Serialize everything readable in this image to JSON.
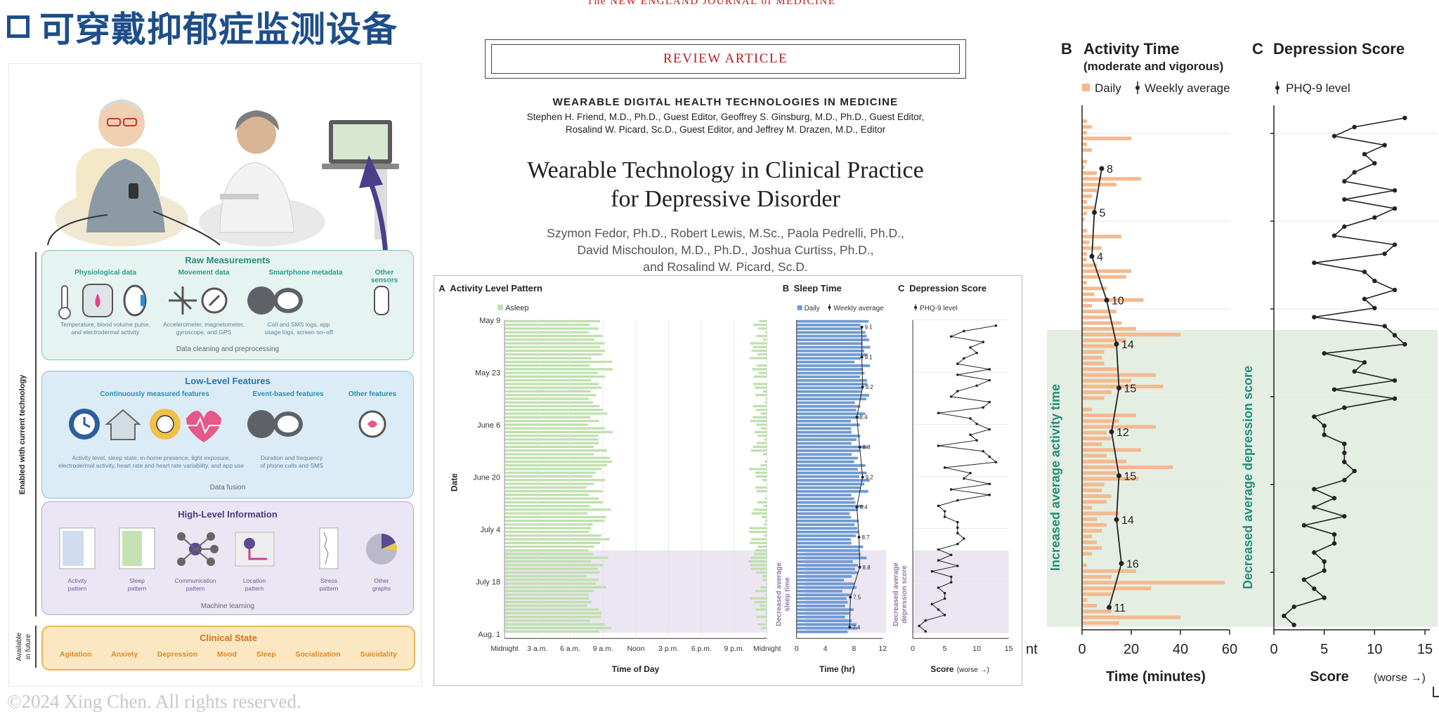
{
  "slide": {
    "title": "可穿戴抑郁症监测设备",
    "copyright": "©2024 Xing Chen. All rights reserved."
  },
  "colors": {
    "title_blue": "#1d4e89",
    "nejm_red": "#b81c22",
    "asleep_green": "#bfe0ae",
    "sleep_blue": "#6f9ad2",
    "activity_orange": "#f4b98f",
    "shade_lilac": "#ece6f2",
    "shade_green": "#e5eee2",
    "annot_purple": "#8f77ad",
    "annot_teal": "#1f8f78"
  },
  "infographic": {
    "raw": {
      "title": "Raw Measurements",
      "physio_label": "Physiological data",
      "physio_desc": [
        "Temperature, blood volume pulse,",
        "and electrodermal activity"
      ],
      "movement_label": "Movement data",
      "movement_desc": [
        "Accelerometer, magnetometer,",
        "gyroscope, and GPS"
      ],
      "smartphone_label": "Smartphone metadata",
      "smartphone_desc": [
        "Call and SMS logs, app",
        "usage logs, screen on–off"
      ],
      "other_label": [
        "Other",
        "sensors"
      ],
      "note": "Data cleaning and preprocessing"
    },
    "low": {
      "title": "Low-Level Features",
      "continuous_label": "Continuously measured features",
      "continuous_desc": [
        "Activity level, sleep state, in-home presence, light exposure,",
        "electrodermal activity, heart rate and heart rate variability, and app use"
      ],
      "event_label": "Event-based features",
      "event_desc": [
        "Duration and frequency",
        "of phone calls and SMS"
      ],
      "other_label": "Other features",
      "note": "Data fusion"
    },
    "high": {
      "title": "High-Level Information",
      "items": [
        [
          "Activity",
          "pattern"
        ],
        [
          "Sleep",
          "pattern"
        ],
        [
          "Communication",
          "pattern"
        ],
        [
          "Location",
          "pattern"
        ],
        [
          "Stress",
          "pattern"
        ],
        [
          "Other",
          "graphs"
        ]
      ],
      "note": "Machine learning"
    },
    "clinical": {
      "title": "Clinical State",
      "items": [
        "Agitation",
        "Anxiety",
        "Depression",
        "Mood",
        "Sleep",
        "Socialization",
        "Suicidality"
      ]
    },
    "side_current": "Enabled with current technology",
    "side_future": [
      "Available",
      "in future"
    ]
  },
  "article": {
    "journal_header": "The NEW ENGLAND JOURNAL of MEDICINE",
    "review_label": "REVIEW ARTICLE",
    "series": "WEARABLE DIGITAL HEALTH TECHNOLOGIES IN MEDICINE",
    "editors": [
      "Stephen H. Friend, M.D., Ph.D., Guest Editor, Geoffrey S. Ginsburg, M.D., Ph.D., Guest Editor,",
      "Rosalind W. Picard, Sc.D., Guest Editor, and Jeffrey M. Drazen, M.D., Editor"
    ],
    "title": [
      "Wearable Technology in Clinical Practice",
      "for Depressive Disorder"
    ],
    "authors": [
      "Szymon Fedor, Ph.D., Robert Lewis, M.Sc., Paola Pedrelli, Ph.D.,",
      "David Mischoulon, M.D., Ph.D., Joshua Curtiss, Ph.D.,",
      "and Rosalind W. Picard, Sc.D."
    ]
  },
  "chart_data": [
    {
      "type": "bar",
      "panel": "A",
      "title": "Activity Level Pattern",
      "legend": [
        "Asleep"
      ],
      "xlabel": "Time of Day",
      "ylabel": "Date",
      "x_ticks": [
        "Midnight",
        "3 a.m.",
        "6 a.m.",
        "9 a.m.",
        "Noon",
        "3 p.m.",
        "6 p.m.",
        "9 p.m.",
        "Midnight"
      ],
      "y_ticks": [
        "May 9",
        "May 23",
        "June 6",
        "June 20",
        "July 4",
        "July 18",
        "Aug. 1"
      ],
      "days": 85,
      "shaded_from_day": 60
    },
    {
      "type": "bar",
      "panel": "B",
      "title": "Sleep Time",
      "legend": [
        "Daily",
        "Weekly average"
      ],
      "xlabel": "Time (hr)",
      "xlim": [
        0,
        12
      ],
      "x_ticks": [
        0,
        4,
        8,
        12
      ],
      "weekly_average": [
        9.1,
        9.1,
        9.2,
        8.4,
        8.8,
        9.2,
        8.4,
        8.7,
        8.8,
        7.5,
        7.4
      ],
      "annotation": [
        "Decreased average",
        "sleep time"
      ]
    },
    {
      "type": "line",
      "panel": "C",
      "title": "Depression Score",
      "legend": [
        "PHQ-9 level"
      ],
      "xlabel": "Score",
      "xlabel_note": "(worse →)",
      "xlim": [
        0,
        15
      ],
      "x_ticks": [
        0,
        5,
        10,
        15
      ],
      "annotation": [
        "Decreased average",
        "depression score"
      ]
    },
    {
      "type": "bar",
      "panel": "B",
      "title": "Activity Time",
      "subtitle": "(moderate and vigorous)",
      "legend": [
        "Daily",
        "Weekly average"
      ],
      "xlabel": "Time (minutes)",
      "xlim": [
        0,
        60
      ],
      "x_ticks": [
        0,
        20,
        40,
        60
      ],
      "weekly_average": [
        8,
        5,
        4,
        10,
        14,
        15,
        12,
        15,
        14,
        16,
        11
      ],
      "daily": [
        2,
        4,
        2,
        20,
        2,
        4,
        0,
        2,
        1,
        6,
        24,
        14,
        6,
        4,
        2,
        5,
        2,
        1,
        0,
        2,
        16,
        3,
        8,
        2,
        2,
        6,
        20,
        18,
        2,
        10,
        5,
        25,
        4,
        14,
        12,
        16,
        22,
        40,
        18,
        14,
        9,
        8,
        9,
        15,
        30,
        20,
        33,
        12,
        9,
        0,
        4,
        22,
        15,
        30,
        10,
        12,
        8,
        24,
        10,
        18,
        37,
        14,
        23,
        9,
        8,
        12,
        10,
        4,
        15,
        6,
        10,
        8,
        4,
        6,
        8,
        4,
        0,
        2,
        22,
        12,
        58,
        28,
        12,
        2,
        6,
        12,
        40,
        15
      ],
      "left_tick_fragment": "nt",
      "annotation": "Increased average activity time"
    },
    {
      "type": "line",
      "panel": "C",
      "title": "Depression Score",
      "legend": [
        "PHQ-9 level"
      ],
      "xlabel": "Score",
      "xlabel_note": "(worse →)",
      "xlim": [
        0,
        15
      ],
      "x_ticks": [
        0,
        5,
        10,
        15
      ],
      "x": [
        13,
        8,
        6,
        11,
        9,
        10,
        8,
        7,
        12,
        7,
        12,
        10,
        7,
        6,
        12,
        11,
        4,
        9,
        10,
        12,
        9,
        10,
        4,
        11,
        12,
        13,
        5,
        9,
        8,
        12,
        6,
        12,
        7,
        4,
        5,
        5,
        7,
        7,
        7,
        8,
        7,
        4,
        6,
        4,
        7,
        3,
        6,
        6,
        4,
        5,
        5,
        3,
        4,
        5,
        2,
        1,
        2
      ],
      "annotation": "Decreased average depression score"
    }
  ]
}
